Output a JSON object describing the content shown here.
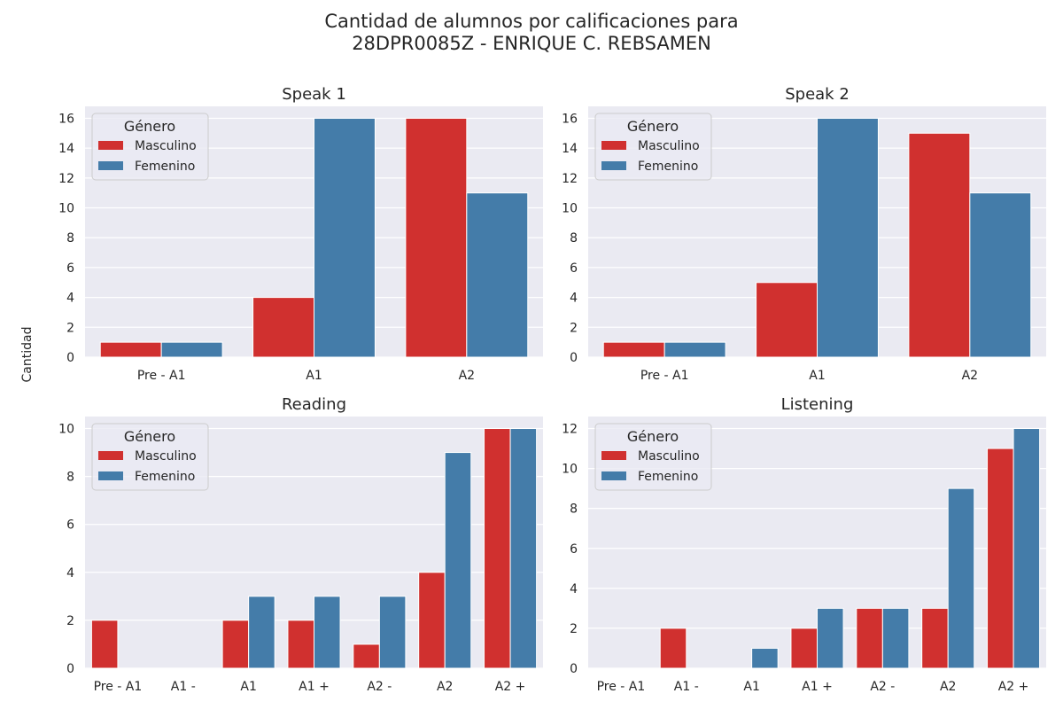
{
  "figure": {
    "title_line1": "Cantidad de alumnos por calificaciones para",
    "title_line2": "28DPR0085Z - ENRIQUE C. REBSAMEN",
    "ylabel": "Cantidad"
  },
  "colors": {
    "masculino": "#d0302f",
    "femenino": "#447ca9",
    "panel_bg": "#eaeaf2",
    "grid": "#ffffff"
  },
  "chart_data": [
    {
      "type": "bar",
      "title": "Speak 1",
      "categories": [
        "Pre - A1",
        "A1",
        "A2"
      ],
      "series": [
        {
          "name": "Masculino",
          "values": [
            1,
            4,
            16
          ]
        },
        {
          "name": "Femenino",
          "values": [
            1,
            16,
            11
          ]
        }
      ],
      "ylim": [
        0,
        16.8
      ],
      "yticks": [
        0,
        2,
        4,
        6,
        8,
        10,
        12,
        14,
        16
      ],
      "legend": {
        "title": "Género",
        "placement": "top-left"
      },
      "grid": true
    },
    {
      "type": "bar",
      "title": "Speak 2",
      "categories": [
        "Pre - A1",
        "A1",
        "A2"
      ],
      "series": [
        {
          "name": "Masculino",
          "values": [
            1,
            5,
            15
          ]
        },
        {
          "name": "Femenino",
          "values": [
            1,
            16,
            11
          ]
        }
      ],
      "ylim": [
        0,
        16.8
      ],
      "yticks": [
        0,
        2,
        4,
        6,
        8,
        10,
        12,
        14,
        16
      ],
      "legend": {
        "title": "Género",
        "placement": "top-left"
      },
      "grid": true
    },
    {
      "type": "bar",
      "title": "Reading",
      "categories": [
        "Pre - A1",
        "A1 -",
        "A1",
        "A1 +",
        "A2 -",
        "A2",
        "A2 +"
      ],
      "series": [
        {
          "name": "Masculino",
          "values": [
            2,
            0,
            2,
            2,
            1,
            4,
            10
          ]
        },
        {
          "name": "Femenino",
          "values": [
            0,
            0,
            3,
            3,
            3,
            9,
            10
          ]
        }
      ],
      "ylim": [
        0,
        10.5
      ],
      "yticks": [
        0,
        2,
        4,
        6,
        8,
        10
      ],
      "legend": {
        "title": "Género",
        "placement": "top-left"
      },
      "grid": true
    },
    {
      "type": "bar",
      "title": "Listening",
      "categories": [
        "Pre - A1",
        "A1 -",
        "A1",
        "A1 +",
        "A2 -",
        "A2",
        "A2 +"
      ],
      "series": [
        {
          "name": "Masculino",
          "values": [
            0,
            2,
            0,
            2,
            3,
            3,
            11
          ]
        },
        {
          "name": "Femenino",
          "values": [
            0,
            0,
            1,
            3,
            3,
            9,
            12
          ]
        }
      ],
      "ylim": [
        0,
        12.6
      ],
      "yticks": [
        0,
        2,
        4,
        6,
        8,
        10,
        12
      ],
      "legend": {
        "title": "Género",
        "placement": "top-left"
      },
      "grid": true
    }
  ]
}
